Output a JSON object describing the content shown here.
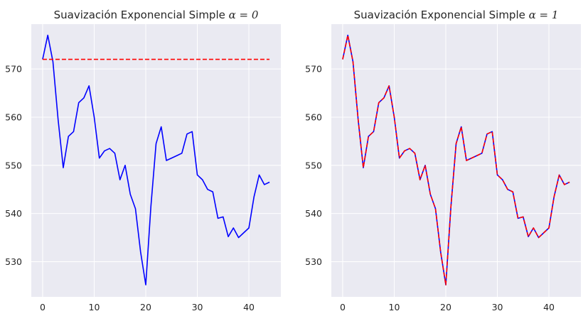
{
  "chart_data": [
    {
      "type": "line",
      "title": "Suavización Exponencial Simple α = 0",
      "title_text": "Suavización Exponencial Simple ",
      "title_math": "α = 0",
      "xlabel": "",
      "ylabel": "",
      "xlim": [
        -2.2,
        46.2
      ],
      "ylim": [
        522.7,
        579.3
      ],
      "xticks": [
        0,
        10,
        20,
        30,
        40
      ],
      "yticks": [
        530,
        540,
        550,
        560,
        570
      ],
      "grid": true,
      "background": "#eaeaf2",
      "x": [
        0,
        1,
        2,
        3,
        4,
        5,
        6,
        7,
        8,
        9,
        10,
        11,
        12,
        13,
        14,
        15,
        16,
        17,
        18,
        19,
        20,
        21,
        22,
        23,
        24,
        25,
        26,
        27,
        28,
        29,
        30,
        31,
        32,
        33,
        34,
        35,
        36,
        37,
        38,
        39,
        40,
        41,
        42,
        43,
        44
      ],
      "series": [
        {
          "color": "#0000ff",
          "style": "solid",
          "values": [
            572.0,
            577.0,
            571.5,
            559.5,
            549.5,
            556.0,
            557.0,
            563.0,
            564.0,
            566.5,
            560.0,
            551.5,
            553.0,
            553.5,
            552.5,
            547.0,
            550.0,
            544.0,
            541.0,
            532.0,
            525.2,
            541.5,
            554.5,
            558.0,
            551.0,
            551.5,
            552.0,
            552.5,
            556.5,
            557.0,
            548.0,
            547.0,
            545.0,
            544.5,
            539.0,
            539.3,
            535.2,
            537.0,
            535.0,
            536.0,
            537.0,
            543.5,
            548.0,
            546.0,
            546.5
          ]
        },
        {
          "color": "#ff0000",
          "style": "dashed",
          "values": [
            572,
            572,
            572,
            572,
            572,
            572,
            572,
            572,
            572,
            572,
            572,
            572,
            572,
            572,
            572,
            572,
            572,
            572,
            572,
            572,
            572,
            572,
            572,
            572,
            572,
            572,
            572,
            572,
            572,
            572,
            572,
            572,
            572,
            572,
            572,
            572,
            572,
            572,
            572,
            572,
            572,
            572,
            572,
            572,
            572
          ]
        }
      ]
    },
    {
      "type": "line",
      "title": "Suavización Exponencial Simple α = 1",
      "title_text": "Suavización Exponencial Simple ",
      "title_math": "α = 1",
      "xlabel": "",
      "ylabel": "",
      "xlim": [
        -2.2,
        46.2
      ],
      "ylim": [
        522.7,
        579.3
      ],
      "xticks": [
        0,
        10,
        20,
        30,
        40
      ],
      "yticks": [
        530,
        540,
        550,
        560,
        570
      ],
      "grid": true,
      "background": "#eaeaf2",
      "x": [
        0,
        1,
        2,
        3,
        4,
        5,
        6,
        7,
        8,
        9,
        10,
        11,
        12,
        13,
        14,
        15,
        16,
        17,
        18,
        19,
        20,
        21,
        22,
        23,
        24,
        25,
        26,
        27,
        28,
        29,
        30,
        31,
        32,
        33,
        34,
        35,
        36,
        37,
        38,
        39,
        40,
        41,
        42,
        43,
        44
      ],
      "series": [
        {
          "color": "#0000ff",
          "style": "solid",
          "values": [
            572.0,
            577.0,
            571.5,
            559.5,
            549.5,
            556.0,
            557.0,
            563.0,
            564.0,
            566.5,
            560.0,
            551.5,
            553.0,
            553.5,
            552.5,
            547.0,
            550.0,
            544.0,
            541.0,
            532.0,
            525.2,
            541.5,
            554.5,
            558.0,
            551.0,
            551.5,
            552.0,
            552.5,
            556.5,
            557.0,
            548.0,
            547.0,
            545.0,
            544.5,
            539.0,
            539.3,
            535.2,
            537.0,
            535.0,
            536.0,
            537.0,
            543.5,
            548.0,
            546.0,
            546.5
          ]
        },
        {
          "color": "#ff0000",
          "style": "dashed",
          "values": [
            572.0,
            577.0,
            571.5,
            559.5,
            549.5,
            556.0,
            557.0,
            563.0,
            564.0,
            566.5,
            560.0,
            551.5,
            553.0,
            553.5,
            552.5,
            547.0,
            550.0,
            544.0,
            541.0,
            532.0,
            525.2,
            541.5,
            554.5,
            558.0,
            551.0,
            551.5,
            552.0,
            552.5,
            556.5,
            557.0,
            548.0,
            547.0,
            545.0,
            544.5,
            539.0,
            539.3,
            535.2,
            537.0,
            535.0,
            536.0,
            537.0,
            543.5,
            548.0,
            546.0,
            546.5
          ]
        }
      ]
    }
  ]
}
